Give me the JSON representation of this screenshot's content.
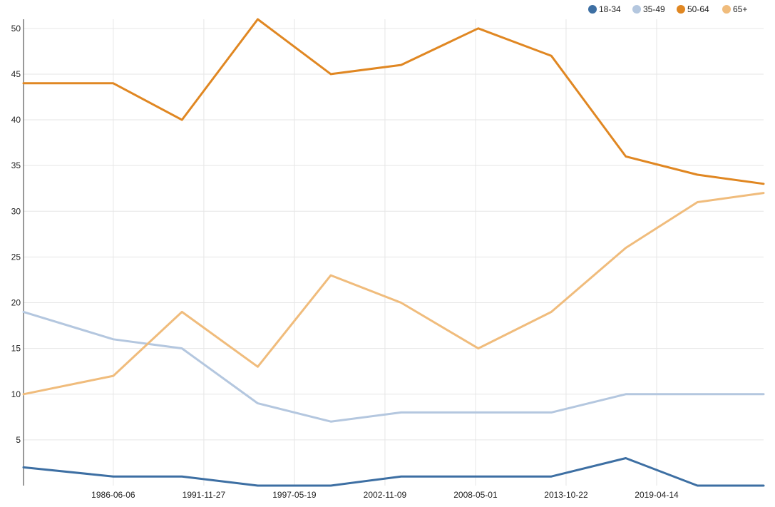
{
  "chart_data": {
    "type": "line",
    "title": "",
    "xlabel": "",
    "ylabel": "",
    "x": [
      "1981-01-01",
      "1986-06-06",
      "1990-08-01",
      "1995-03-01",
      "1999-08-01",
      "2003-11-01",
      "2008-07-01",
      "2012-12-01",
      "2017-06-01",
      "2021-10-01",
      "2025-10-01"
    ],
    "x_ticks": [
      "1986-06-06",
      "1991-11-27",
      "1997-05-19",
      "2002-11-09",
      "2008-05-01",
      "2013-10-22",
      "2019-04-14"
    ],
    "y_ticks": [
      5,
      10,
      15,
      20,
      25,
      30,
      35,
      40,
      45,
      50
    ],
    "ylim": [
      0,
      51
    ],
    "grid": true,
    "legend": "top-right",
    "series": [
      {
        "name": "18-34",
        "color": "#3d6fa3",
        "values": [
          2,
          1,
          1,
          0,
          0,
          1,
          1,
          1,
          3,
          0,
          0
        ]
      },
      {
        "name": "35-49",
        "color": "#b4c7df",
        "values": [
          19,
          16,
          15,
          9,
          7,
          8,
          8,
          8,
          10,
          10,
          10
        ]
      },
      {
        "name": "50-64",
        "color": "#e08722",
        "values": [
          44,
          44,
          40,
          51,
          45,
          46,
          50,
          47,
          36,
          34,
          33
        ]
      },
      {
        "name": "65+",
        "color": "#f0bc7c",
        "values": [
          10,
          12,
          19,
          13,
          23,
          20,
          15,
          19,
          26,
          31,
          32
        ]
      }
    ]
  }
}
